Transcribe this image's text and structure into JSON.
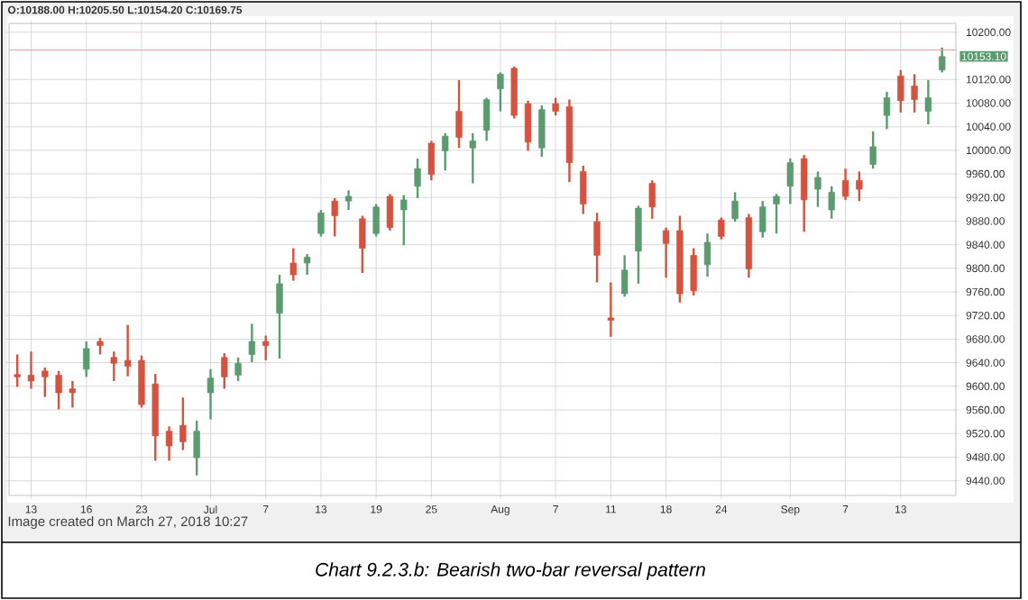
{
  "chart_data": {
    "type": "candlestick",
    "title": "O:10188.00 H:10205.50 L:10154.20 C:10169.75",
    "annotations": [
      "Image created on March 27, 2018 10:27",
      "Chart 9.2.3.b: Bearish two-bar reversal pattern",
      "10153.10"
    ],
    "categories": [
      null,
      "13",
      null,
      null,
      null,
      "16",
      null,
      null,
      null,
      "23",
      null,
      null,
      null,
      null,
      "Jul",
      null,
      null,
      null,
      "7",
      null,
      null,
      null,
      "13",
      null,
      null,
      null,
      "19",
      null,
      null,
      null,
      "25",
      null,
      null,
      null,
      null,
      "Aug",
      null,
      null,
      null,
      "7",
      null,
      null,
      null,
      "11",
      null,
      null,
      null,
      "18",
      null,
      null,
      null,
      "24",
      null,
      null,
      null,
      null,
      "Sep",
      null,
      null,
      null,
      "7",
      null,
      null,
      null,
      "13",
      null,
      null,
      null
    ],
    "ohlc": [
      [
        9620,
        9654,
        9599,
        9616
      ],
      [
        9619,
        9659,
        9596,
        9609
      ],
      [
        9626,
        9632,
        9582,
        9616
      ],
      [
        9619,
        9626,
        9561,
        9589
      ],
      [
        9596,
        9609,
        9564,
        9589
      ],
      [
        9629,
        9676,
        9616,
        9664
      ],
      [
        9676,
        9682,
        9654,
        9669
      ],
      [
        9649,
        9659,
        9609,
        9639
      ],
      [
        9644,
        9704,
        9617,
        9634
      ],
      [
        9644,
        9652,
        9564,
        9569
      ],
      [
        9604,
        9621,
        9474,
        9516
      ],
      [
        9524,
        9532,
        9474,
        9499
      ],
      [
        9534,
        9581,
        9492,
        9506
      ],
      [
        9479,
        9542,
        9449,
        9524
      ],
      [
        9589,
        9629,
        9544,
        9614
      ],
      [
        9649,
        9656,
        9596,
        9616
      ],
      [
        9619,
        9649,
        9609,
        9639
      ],
      [
        9654,
        9706,
        9641,
        9676
      ],
      [
        9676,
        9686,
        9644,
        9669
      ],
      [
        9724,
        9789,
        9647,
        9774
      ],
      [
        9809,
        9834,
        9779,
        9789
      ],
      [
        9809,
        9824,
        9789,
        9819
      ],
      [
        9859,
        9899,
        9854,
        9894
      ],
      [
        9914,
        9919,
        9854,
        9889
      ],
      [
        9914,
        9932,
        9899,
        9922
      ],
      [
        9884,
        9889,
        9792,
        9834
      ],
      [
        9859,
        9909,
        9854,
        9904
      ],
      [
        9922,
        9926,
        9864,
        9869
      ],
      [
        9899,
        9924,
        9839,
        9916
      ],
      [
        9939,
        9986,
        9919,
        9969
      ],
      [
        10012,
        10016,
        9949,
        9959
      ],
      [
        9999,
        10029,
        9966,
        10024
      ],
      [
        10066,
        10119,
        10004,
        10022
      ],
      [
        10004,
        10029,
        9944,
        10016
      ],
      [
        10034,
        10089,
        10016,
        10086
      ],
      [
        10104,
        10132,
        10066,
        10129
      ],
      [
        10139,
        10142,
        10054,
        10059
      ],
      [
        10079,
        10084,
        9999,
        10014
      ],
      [
        10004,
        10076,
        9989,
        10069
      ],
      [
        10079,
        10089,
        10059,
        10066
      ],
      [
        10074,
        10086,
        9946,
        9979
      ],
      [
        9964,
        9974,
        9892,
        9909
      ],
      [
        9879,
        9894,
        9776,
        9822
      ],
      [
        9716,
        9776,
        9684,
        9712
      ],
      [
        9757,
        9822,
        9752,
        9797
      ],
      [
        9829,
        9906,
        9774,
        9902
      ],
      [
        9944,
        9949,
        9884,
        9904
      ],
      [
        9864,
        9869,
        9784,
        9842
      ],
      [
        9864,
        9889,
        9742,
        9757
      ],
      [
        9822,
        9834,
        9754,
        9762
      ],
      [
        9806,
        9859,
        9786,
        9844
      ],
      [
        9882,
        9886,
        9849,
        9854
      ],
      [
        9884,
        9929,
        9879,
        9914
      ],
      [
        9886,
        9892,
        9784,
        9799
      ],
      [
        9862,
        9914,
        9852,
        9904
      ],
      [
        9909,
        9926,
        9859,
        9922
      ],
      [
        9939,
        9986,
        9909,
        9979
      ],
      [
        9986,
        9992,
        9862,
        9916
      ],
      [
        9934,
        9964,
        9904,
        9954
      ],
      [
        9899,
        9939,
        9884,
        9929
      ],
      [
        9949,
        9969,
        9916,
        9922
      ],
      [
        9949,
        9964,
        9914,
        9934
      ],
      [
        9976,
        10032,
        9969,
        10006
      ],
      [
        10059,
        10099,
        10036,
        10089
      ],
      [
        10126,
        10136,
        10064,
        10084
      ],
      [
        10109,
        10129,
        10064,
        10086
      ],
      [
        10066,
        10119,
        10044,
        10089
      ],
      [
        10136,
        10174,
        10132,
        10159
      ]
    ],
    "ylim": [
      9415,
      10215
    ],
    "yticks": [
      {
        "value": 10200,
        "label": "10200.00"
      },
      {
        "value": 10120,
        "label": "10120.00"
      },
      {
        "value": 10080,
        "label": "10080.00"
      },
      {
        "value": 10040,
        "label": "10040.00"
      },
      {
        "value": 10000,
        "label": "10000.00"
      },
      {
        "value": 9960,
        "label": "9960.00"
      },
      {
        "value": 9920,
        "label": "9920.00"
      },
      {
        "value": 9880,
        "label": "9880.00"
      },
      {
        "value": 9840,
        "label": "9840.00"
      },
      {
        "value": 9800,
        "label": "9800.00"
      },
      {
        "value": 9760,
        "label": "9760.00"
      },
      {
        "value": 9720,
        "label": "9720.00"
      },
      {
        "value": 9680,
        "label": "9680.00"
      },
      {
        "value": 9640,
        "label": "9640.00"
      },
      {
        "value": 9600,
        "label": "9600.00"
      },
      {
        "value": 9560,
        "label": "9560.00"
      },
      {
        "value": 9520,
        "label": "9520.00"
      },
      {
        "value": 9480,
        "label": "9480.00"
      },
      {
        "value": 9440,
        "label": "9440.00"
      }
    ],
    "ref_lines": [
      {
        "axis": "y",
        "value": 10170,
        "color": "#eb9c9c"
      }
    ],
    "grid": true
  }
}
